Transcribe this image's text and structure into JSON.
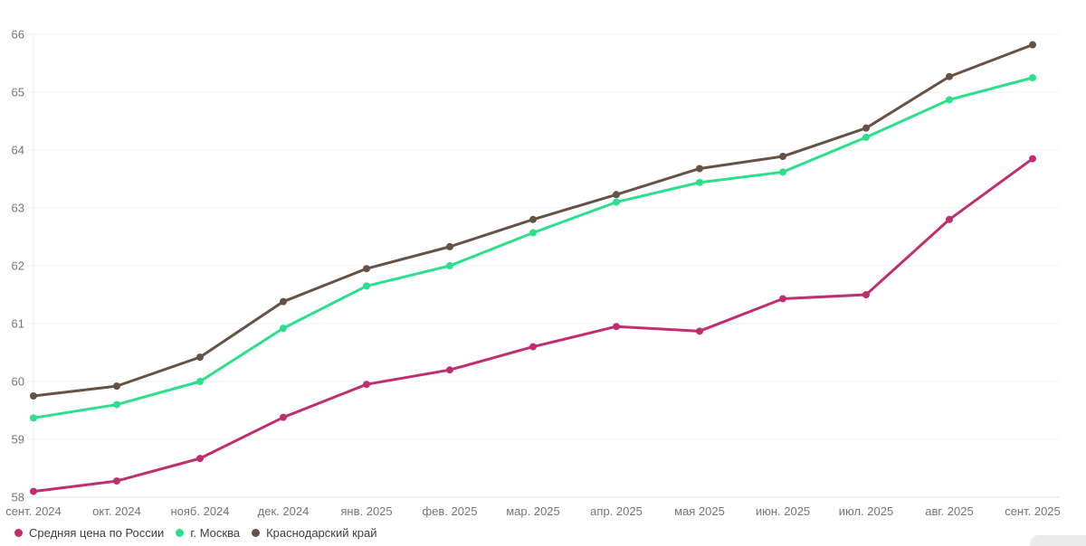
{
  "chart_data": {
    "type": "line",
    "categories": [
      "сент. 2024",
      "окт. 2024",
      "нояб. 2024",
      "дек. 2024",
      "янв. 2025",
      "фев. 2025",
      "мар. 2025",
      "апр. 2025",
      "мая 2025",
      "июн. 2025",
      "июл. 2025",
      "авг. 2025",
      "сент. 2025"
    ],
    "series": [
      {
        "name": "Средняя цена по России",
        "color": "#c02e70",
        "values": [
          58.1,
          58.28,
          58.67,
          59.38,
          59.95,
          60.2,
          60.6,
          60.95,
          60.87,
          61.43,
          61.5,
          62.8,
          63.85
        ]
      },
      {
        "name": "г. Москва",
        "color": "#2cdf8b",
        "values": [
          59.37,
          59.6,
          60.0,
          60.92,
          61.65,
          62.0,
          62.57,
          63.1,
          63.44,
          63.62,
          64.22,
          64.87,
          65.25
        ]
      },
      {
        "name": "Краснодарский край",
        "color": "#655145",
        "values": [
          59.75,
          59.92,
          60.42,
          61.38,
          61.95,
          62.33,
          62.8,
          63.23,
          63.68,
          63.89,
          64.38,
          65.27,
          65.82
        ]
      }
    ],
    "title": "",
    "xlabel": "",
    "ylabel": "",
    "ylim": [
      58,
      66
    ],
    "yticks": [
      58,
      59,
      60,
      61,
      62,
      63,
      64,
      65,
      66
    ],
    "grid": true,
    "legend_position": "bottom-left"
  },
  "colors": {
    "background": "#ffffff",
    "gridline": "#f0f0f0",
    "axis_line": "#e0e0e0",
    "y_axis_line": "#ececec",
    "tick_label": "#757575",
    "legend_text": "#3f3f3f",
    "corner_widget": "#ebebeb"
  }
}
